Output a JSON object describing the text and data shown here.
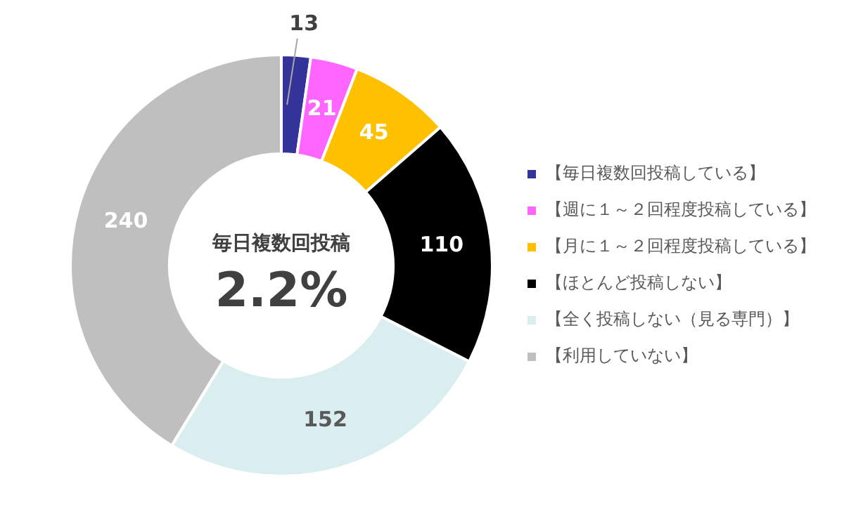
{
  "chart_data": {
    "type": "donut",
    "categories": [
      "【毎日複数回投稿している】",
      "【週に１～２回程度投稿している】",
      "【月に１～２回程度投稿している】",
      "【ほとんど投稿しない】",
      "【全く投稿しない（見る専門）】",
      "【利用していない】"
    ],
    "values": [
      13,
      21,
      45,
      110,
      152,
      240
    ],
    "colors": [
      "#333399",
      "#ff66ff",
      "#ffc000",
      "#000000",
      "#daeef0",
      "#bfbfbf"
    ],
    "data_labels": true,
    "legend": "right",
    "annotations": [
      "毎日複数回投稿",
      "2.2%"
    ]
  }
}
